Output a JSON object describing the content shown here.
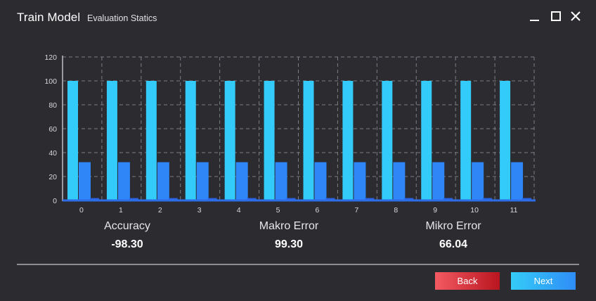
{
  "window": {
    "title": "Train Model",
    "subtitle": "Evaluation Statics"
  },
  "chart_data": {
    "type": "bar",
    "categories": [
      "0",
      "1",
      "2",
      "3",
      "4",
      "5",
      "6",
      "7",
      "8",
      "9",
      "10",
      "11"
    ],
    "series": [
      {
        "values": [
          100,
          100,
          100,
          100,
          100,
          100,
          100,
          100,
          100,
          100,
          100,
          100
        ],
        "color": "#33cbfa"
      },
      {
        "values": [
          32,
          32,
          32,
          32,
          32,
          32,
          32,
          32,
          32,
          32,
          32,
          32
        ],
        "color": "#2e86f7"
      },
      {
        "values": [
          2,
          2,
          2,
          2,
          2,
          2,
          2,
          2,
          2,
          2,
          2,
          2
        ],
        "color": "#2a62e0"
      }
    ],
    "yticks": [
      0,
      20,
      40,
      60,
      80,
      100,
      120
    ],
    "ylim": [
      0,
      120
    ],
    "grid": true
  },
  "metrics": [
    {
      "label": "Accuracy",
      "value": "-98.30"
    },
    {
      "label": "Makro Error",
      "value": "99.30"
    },
    {
      "label": "Mikro Error",
      "value": "66.04"
    }
  ],
  "buttons": {
    "back_label": "Back",
    "next_label": "Next"
  }
}
